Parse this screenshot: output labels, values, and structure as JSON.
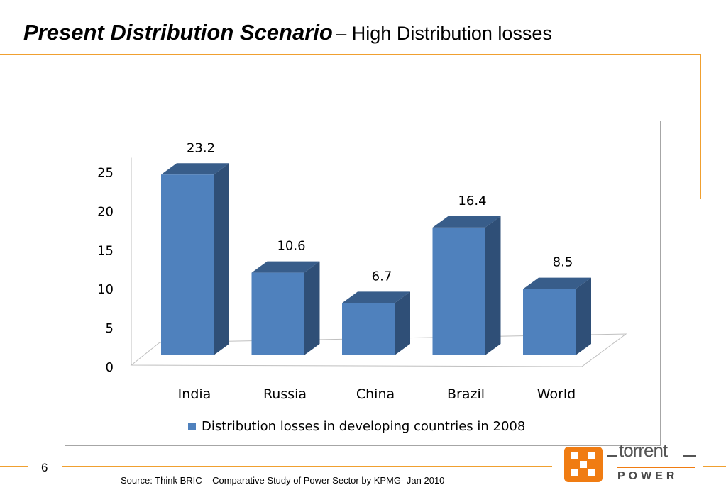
{
  "slide": {
    "title_main": "Present Distribution Scenario",
    "title_sub": "– High Distribution losses",
    "page_number": "6",
    "source": "Source: Think BRIC – Comparative Study of Power Sector by KPMG- Jan 2010",
    "logo_text_top": "torrent",
    "logo_text_bottom": "POWER",
    "accent_color": "#f0a030",
    "logo_orange": "#f07c12"
  },
  "chart_data": {
    "type": "bar",
    "categories": [
      "India",
      "Russia",
      "China",
      "Brazil",
      "World"
    ],
    "series": [
      {
        "name": "Distribution losses in developing countries in 2008",
        "values": [
          23.2,
          10.6,
          6.7,
          16.4,
          8.5
        ]
      }
    ],
    "data_labels": [
      "23.2",
      "10.6",
      "6.7",
      "16.4",
      "8.5"
    ],
    "y_ticks": [
      0,
      5,
      10,
      15,
      20,
      25
    ],
    "ylim": [
      0,
      25
    ],
    "legend_position": "bottom",
    "bar_front_color": "#4f81bd",
    "bar_top_color": "#385d8a",
    "bar_side_color": "#2f4f77",
    "style": "3d"
  }
}
